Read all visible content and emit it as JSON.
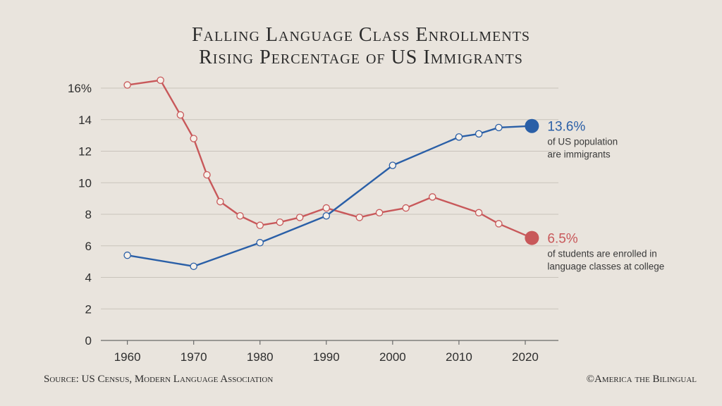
{
  "chart_data": {
    "type": "line",
    "title": [
      "Falling Language Class Enrollments",
      "Rising Percentage of US Immigrants"
    ],
    "xlim": [
      1956,
      2025
    ],
    "ylim": [
      0,
      16
    ],
    "x_ticks": [
      1960,
      1970,
      1980,
      1990,
      2000,
      2010,
      2020
    ],
    "y_ticks": [
      {
        "value": 0,
        "label": "0"
      },
      {
        "value": 2,
        "label": "2"
      },
      {
        "value": 4,
        "label": "4"
      },
      {
        "value": 6,
        "label": "6"
      },
      {
        "value": 8,
        "label": "8"
      },
      {
        "value": 10,
        "label": "10"
      },
      {
        "value": 12,
        "label": "12"
      },
      {
        "value": 14,
        "label": "14"
      },
      {
        "value": 16,
        "label": "16%"
      }
    ],
    "grid": true,
    "series": [
      {
        "color": "#c8585a",
        "x": [
          1960,
          1965,
          1968,
          1970,
          1972,
          1974,
          1977,
          1980,
          1983,
          1986,
          1990,
          1995,
          1998,
          2002,
          2006,
          2013,
          2016,
          2021
        ],
        "y": [
          16.2,
          16.5,
          14.3,
          12.8,
          10.5,
          8.8,
          7.9,
          7.3,
          7.5,
          7.8,
          8.4,
          7.8,
          8.1,
          8.4,
          9.1,
          8.1,
          7.4,
          6.5
        ],
        "callout_value": "6.5%",
        "callout_text": [
          "of students are enrolled in",
          "language classes at college"
        ]
      },
      {
        "color": "#2a5fa7",
        "x": [
          1960,
          1970,
          1980,
          1990,
          2000,
          2010,
          2013,
          2016,
          2021
        ],
        "y": [
          5.4,
          4.7,
          6.2,
          7.9,
          11.1,
          12.9,
          13.1,
          13.5,
          13.6
        ],
        "callout_value": "13.6%",
        "callout_text": [
          "of US population",
          "are immigrants"
        ]
      }
    ]
  },
  "footer": {
    "source": "Source: US Census, Modern Language Association",
    "credit": "©America the Bilingual"
  }
}
